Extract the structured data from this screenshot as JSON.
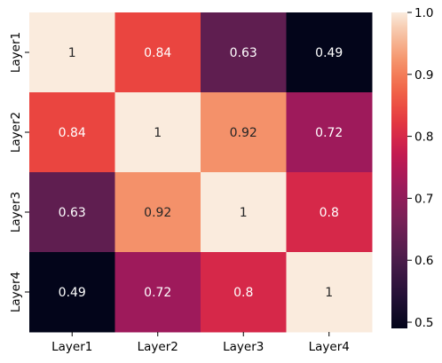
{
  "chart_data": {
    "type": "heatmap",
    "rows": [
      "Layer1",
      "Layer2",
      "Layer3",
      "Layer4"
    ],
    "columns": [
      "Layer1",
      "Layer2",
      "Layer3",
      "Layer4"
    ],
    "values": [
      [
        1,
        0.84,
        0.63,
        0.49
      ],
      [
        0.84,
        1,
        0.92,
        0.72
      ],
      [
        0.63,
        0.92,
        1,
        0.8
      ],
      [
        0.49,
        0.72,
        0.8,
        1
      ]
    ],
    "cell_labels": [
      [
        "1",
        "0.84",
        "0.63",
        "0.49"
      ],
      [
        "0.84",
        "1",
        "0.92",
        "0.72"
      ],
      [
        "0.63",
        "0.92",
        "1",
        "0.8"
      ],
      [
        "0.49",
        "0.72",
        "0.8",
        "1"
      ]
    ],
    "colormap": "rocket",
    "vmin": 0.49,
    "vmax": 1.0,
    "colorbar": {
      "ticks": [
        0.5,
        0.6,
        0.7,
        0.8,
        0.9,
        1.0
      ],
      "tick_labels": [
        "0.5",
        "0.6",
        "0.7",
        "0.8",
        "0.9",
        "1.0"
      ]
    },
    "title": "",
    "xlabel": "",
    "ylabel": ""
  }
}
